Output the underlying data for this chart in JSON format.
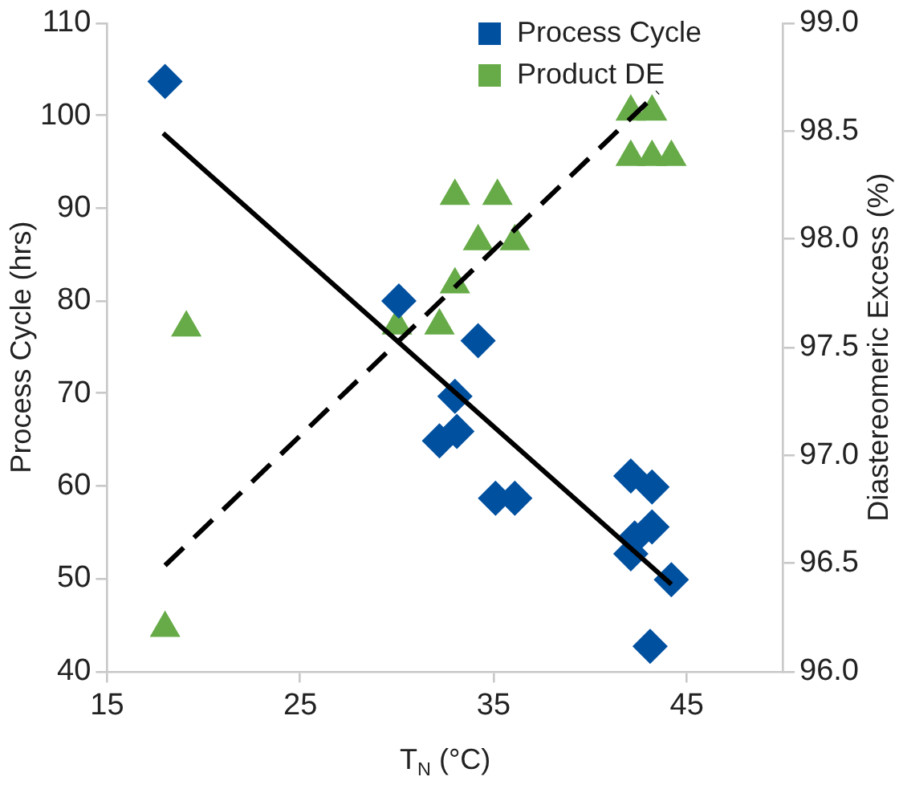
{
  "chart_data": {
    "type": "scatter",
    "xlabel": "T$_{N}$ (°C)",
    "ylabel": "Process Cycle (hrs)",
    "y2label": "Diastereomeric Excess (%)",
    "xlim": [
      15,
      50
    ],
    "xticks": [
      15,
      25,
      35,
      45
    ],
    "ylim": [
      40,
      110
    ],
    "yticks": [
      40,
      50,
      60,
      70,
      80,
      90,
      100,
      110
    ],
    "y2lim": [
      96,
      99
    ],
    "y2ticks": [
      {
        "value": 96,
        "label": "96.0"
      },
      {
        "value": 96.5,
        "label": "96.5"
      },
      {
        "value": 97,
        "label": "97.0"
      },
      {
        "value": 97.5,
        "label": "97.5"
      },
      {
        "value": 98,
        "label": "98.0"
      },
      {
        "value": 98.5,
        "label": "98.5"
      },
      {
        "value": 99,
        "label": "99.0"
      }
    ],
    "grid": false,
    "legend": "top right",
    "series": [
      {
        "name": "Process Cycle",
        "type": "scatter",
        "marker": "diamond",
        "color": "#0050a0",
        "x": [
          18,
          30.1,
          34.2,
          33,
          32.2,
          33.1,
          35.1,
          36.1,
          42.1,
          43.2,
          43.2,
          42.3,
          42.1,
          44.2,
          43.1
        ],
        "values": [
          103.7,
          80,
          75.7,
          69.7,
          64.9,
          65.9,
          58.7,
          58.7,
          61.1,
          59.9,
          55.6,
          54.4,
          52.7,
          49.9,
          42.7
        ]
      },
      {
        "name": "Product DE",
        "type": "scatter",
        "marker": "triangle",
        "axis": "y2",
        "color": "#66ab47",
        "x": [
          19.1,
          18,
          30,
          32.2,
          33,
          34.2,
          36.1,
          33,
          35.2,
          42.1,
          43.2,
          42.1,
          43.2,
          44.2
        ],
        "values": [
          97.59,
          96.2,
          97.6,
          97.6,
          97.79,
          97.99,
          97.99,
          98.2,
          98.2,
          98.59,
          98.59,
          98.38,
          98.38,
          98.38
        ]
      },
      {
        "type": "line",
        "marker": "none",
        "line_style": "solid",
        "color": "#000000",
        "x": [
          17.9,
          44.2
        ],
        "values": [
          98.1,
          49.4
        ]
      },
      {
        "type": "line",
        "marker": "none",
        "line_style": "dashed",
        "axis": "y2",
        "color": "#000000",
        "x": [
          18,
          43.5
        ],
        "values": [
          96.49,
          98.68
        ]
      }
    ]
  }
}
